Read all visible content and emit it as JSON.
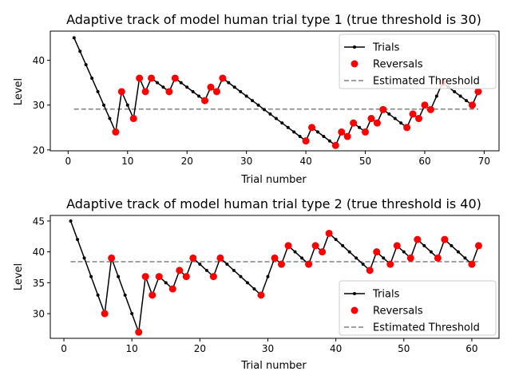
{
  "chart_data": [
    {
      "type": "line",
      "title": "Adaptive track of model human trial type 1 (true threshold is 30)",
      "xlabel": "Trial number",
      "ylabel": "Level",
      "xlim": [
        -3,
        72.5
      ],
      "ylim": [
        19.8,
        46.5
      ],
      "xticks": [
        0,
        10,
        20,
        30,
        40,
        50,
        60,
        70
      ],
      "yticks": [
        20,
        30,
        40
      ],
      "grid": false,
      "legend_position": "upper right",
      "legend": [
        "Trials",
        "Reversals",
        "Estimated Threshold"
      ],
      "colors": {
        "trials": "#000000",
        "reversals": "#ff0000",
        "threshold": "#808080"
      },
      "series": [
        {
          "name": "Trials",
          "x": [
            1,
            2,
            3,
            4,
            5,
            6,
            7,
            8,
            9,
            10,
            11,
            12,
            13,
            14,
            15,
            16,
            17,
            18,
            19,
            20,
            21,
            22,
            23,
            24,
            25,
            26,
            27,
            28,
            29,
            30,
            31,
            32,
            33,
            34,
            35,
            36,
            37,
            38,
            39,
            40,
            41,
            42,
            43,
            44,
            45,
            46,
            47,
            48,
            49,
            50,
            51,
            52,
            53,
            54,
            55,
            56,
            57,
            58,
            59,
            60,
            61,
            62,
            63,
            64,
            65,
            66,
            67,
            68,
            69
          ],
          "y": [
            45,
            42,
            39,
            36,
            33,
            30,
            27,
            24,
            33,
            30,
            27,
            36,
            33,
            36,
            35,
            34,
            33,
            36,
            35,
            34,
            33,
            32,
            31,
            34,
            33,
            36,
            35,
            34,
            33,
            32,
            31,
            30,
            29,
            28,
            27,
            26,
            25,
            24,
            23,
            22,
            25,
            24,
            23,
            22,
            21,
            24,
            23,
            26,
            25,
            24,
            27,
            26,
            29,
            28,
            27,
            26,
            25,
            28,
            27,
            30,
            29,
            32,
            35,
            34,
            33,
            32,
            31,
            30,
            33
          ]
        },
        {
          "name": "Reversals",
          "x": [
            8,
            9,
            11,
            12,
            13,
            14,
            17,
            18,
            23,
            24,
            25,
            26,
            40,
            41,
            45,
            46,
            47,
            48,
            50,
            51,
            52,
            53,
            57,
            58,
            59,
            60,
            61,
            63,
            68,
            69
          ],
          "y": [
            24,
            33,
            27,
            36,
            33,
            36,
            33,
            36,
            31,
            34,
            33,
            36,
            22,
            25,
            21,
            24,
            23,
            26,
            24,
            27,
            26,
            29,
            25,
            28,
            27,
            30,
            29,
            35,
            30,
            33
          ]
        },
        {
          "name": "Estimated Threshold",
          "x": [
            1,
            69
          ],
          "y": [
            29.1,
            29.1
          ]
        }
      ]
    },
    {
      "type": "line",
      "title": "Adaptive track of model human trial type 2 (true threshold is 40)",
      "xlabel": "Trial number",
      "ylabel": "Level",
      "xlim": [
        -2,
        64
      ],
      "ylim": [
        26.0,
        45.9
      ],
      "xticks": [
        0,
        10,
        20,
        30,
        40,
        50,
        60
      ],
      "yticks": [
        30,
        35,
        40,
        45
      ],
      "grid": false,
      "legend_position": "lower right",
      "legend": [
        "Trials",
        "Reversals",
        "Estimated Threshold"
      ],
      "colors": {
        "trials": "#000000",
        "reversals": "#ff0000",
        "threshold": "#808080"
      },
      "series": [
        {
          "name": "Trials",
          "x": [
            1,
            2,
            3,
            4,
            5,
            6,
            7,
            8,
            9,
            10,
            11,
            12,
            13,
            14,
            15,
            16,
            17,
            18,
            19,
            20,
            21,
            22,
            23,
            24,
            25,
            26,
            27,
            28,
            29,
            30,
            31,
            32,
            33,
            34,
            35,
            36,
            37,
            38,
            39,
            40,
            41,
            42,
            43,
            44,
            45,
            46,
            47,
            48,
            49,
            50,
            51,
            52,
            53,
            54,
            55,
            56,
            57,
            58,
            59,
            60,
            61
          ],
          "y": [
            45,
            42,
            39,
            36,
            33,
            30,
            39,
            36,
            33,
            30,
            27,
            36,
            33,
            36,
            35,
            34,
            37,
            36,
            39,
            38,
            37,
            36,
            39,
            38,
            37,
            36,
            35,
            34,
            33,
            36,
            39,
            38,
            41,
            40,
            39,
            38,
            41,
            40,
            43,
            42,
            41,
            40,
            39,
            38,
            37,
            40,
            39,
            38,
            41,
            40,
            39,
            42,
            41,
            40,
            39,
            42,
            41,
            40,
            39,
            38,
            41
          ]
        },
        {
          "name": "Reversals",
          "x": [
            6,
            7,
            11,
            12,
            13,
            14,
            16,
            17,
            18,
            19,
            22,
            23,
            29,
            31,
            32,
            33,
            36,
            37,
            38,
            39,
            45,
            46,
            48,
            49,
            51,
            52,
            55,
            56,
            60,
            61
          ],
          "y": [
            30,
            39,
            27,
            36,
            33,
            36,
            34,
            37,
            36,
            39,
            36,
            39,
            33,
            39,
            38,
            41,
            38,
            41,
            40,
            43,
            37,
            40,
            38,
            41,
            39,
            42,
            39,
            42,
            38,
            41
          ]
        },
        {
          "name": "Estimated Threshold",
          "x": [
            1,
            61
          ],
          "y": [
            38.4,
            38.4
          ]
        }
      ]
    }
  ]
}
